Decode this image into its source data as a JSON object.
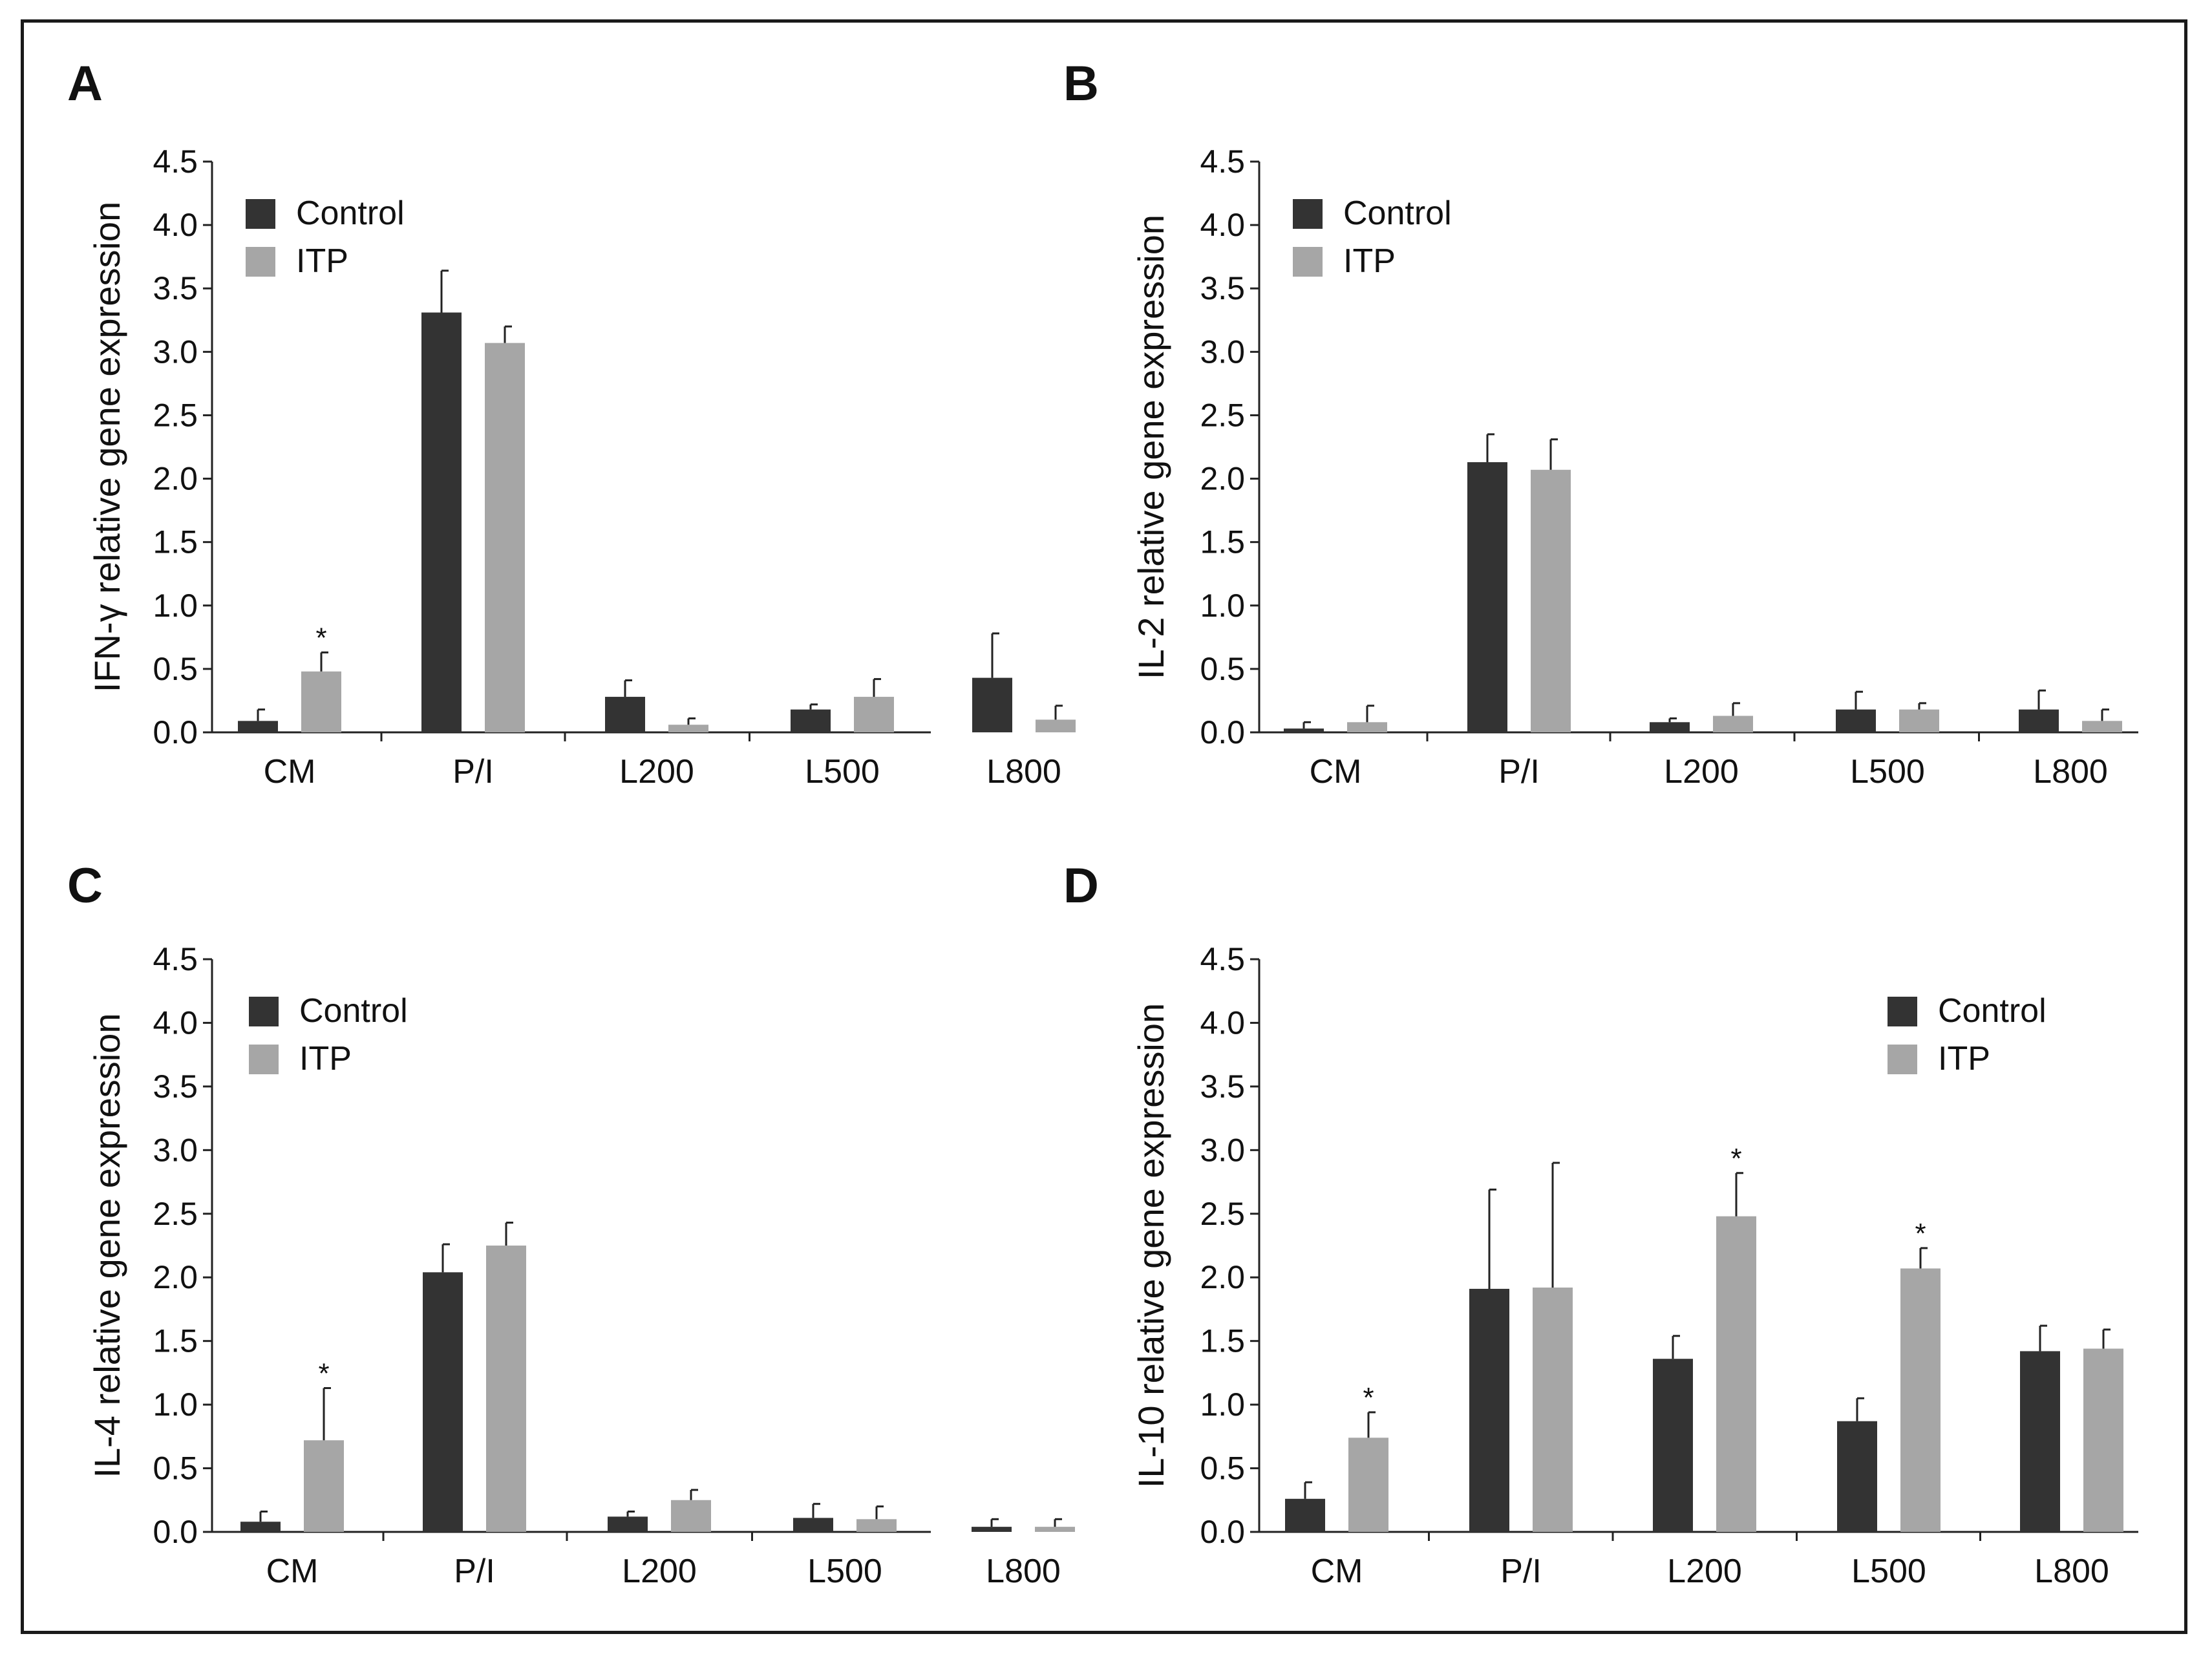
{
  "figure": {
    "legend": {
      "control": "Control",
      "itp": "ITP"
    },
    "colors": {
      "control": "#333333",
      "itp": "#a6a6a6",
      "axis": "#222222",
      "border": "#1a1a1a"
    }
  },
  "chart_data": [
    {
      "panel": "A",
      "type": "bar",
      "ylabel": "IFN-γ relative gene expression",
      "ylim": [
        0,
        4.5
      ],
      "yticks": [
        "0.0",
        "0.5",
        "1.0",
        "1.5",
        "2.0",
        "2.5",
        "3.0",
        "3.5",
        "4.0",
        "4.5"
      ],
      "categories": [
        "CM",
        "P/I",
        "L200",
        "L500",
        "L800"
      ],
      "legend_position": "top-left",
      "series": [
        {
          "name": "Control",
          "values": [
            0.09,
            3.31,
            0.28,
            0.18,
            0.43
          ],
          "errors": [
            0.09,
            0.33,
            0.13,
            0.04,
            0.35
          ]
        },
        {
          "name": "ITP",
          "values": [
            0.48,
            3.07,
            0.06,
            0.28,
            0.1
          ],
          "errors": [
            0.15,
            0.13,
            0.05,
            0.14,
            0.11
          ]
        }
      ],
      "significance": [
        {
          "category": "CM",
          "series": "ITP",
          "label": "*"
        }
      ]
    },
    {
      "panel": "B",
      "type": "bar",
      "ylabel": "IL-2 relative gene expression",
      "ylim": [
        0,
        4.5
      ],
      "yticks": [
        "0.0",
        "0.5",
        "1.0",
        "1.5",
        "2.0",
        "2.5",
        "3.0",
        "3.5",
        "4.0",
        "4.5"
      ],
      "categories": [
        "CM",
        "P/I",
        "L200",
        "L500",
        "L800"
      ],
      "legend_position": "top-left",
      "series": [
        {
          "name": "Control",
          "values": [
            0.03,
            2.13,
            0.08,
            0.18,
            0.18
          ],
          "errors": [
            0.05,
            0.22,
            0.03,
            0.14,
            0.15
          ]
        },
        {
          "name": "ITP",
          "values": [
            0.08,
            2.07,
            0.13,
            0.18,
            0.09
          ],
          "errors": [
            0.13,
            0.24,
            0.1,
            0.05,
            0.09
          ]
        }
      ],
      "significance": []
    },
    {
      "panel": "C",
      "type": "bar",
      "ylabel": "IL-4 relative gene expression",
      "ylim": [
        0,
        4.5
      ],
      "yticks": [
        "0.0",
        "0.5",
        "1.0",
        "1.5",
        "2.0",
        "2.5",
        "3.0",
        "3.5",
        "4.0",
        "4.5"
      ],
      "categories": [
        "CM",
        "P/I",
        "L200",
        "L500",
        "L800"
      ],
      "legend_position": "top-left",
      "series": [
        {
          "name": "Control",
          "values": [
            0.08,
            2.04,
            0.12,
            0.11,
            0.04
          ],
          "errors": [
            0.08,
            0.22,
            0.04,
            0.11,
            0.06
          ]
        },
        {
          "name": "ITP",
          "values": [
            0.72,
            2.25,
            0.25,
            0.1,
            0.04
          ],
          "errors": [
            0.41,
            0.18,
            0.08,
            0.1,
            0.06
          ]
        }
      ],
      "significance": [
        {
          "category": "CM",
          "series": "ITP",
          "label": "*"
        }
      ]
    },
    {
      "panel": "D",
      "type": "bar",
      "ylabel": "IL-10 relative gene expression",
      "ylim": [
        0,
        4.5
      ],
      "yticks": [
        "0.0",
        "0.5",
        "1.0",
        "1.5",
        "2.0",
        "2.5",
        "3.0",
        "3.5",
        "4.0",
        "4.5"
      ],
      "categories": [
        "CM",
        "P/I",
        "L200",
        "L500",
        "L800"
      ],
      "legend_position": "top-right",
      "series": [
        {
          "name": "Control",
          "values": [
            0.26,
            1.91,
            1.36,
            0.87,
            1.42
          ],
          "errors": [
            0.13,
            0.78,
            0.18,
            0.18,
            0.2
          ]
        },
        {
          "name": "ITP",
          "values": [
            0.74,
            1.92,
            2.48,
            2.07,
            1.44
          ],
          "errors": [
            0.2,
            0.98,
            0.34,
            0.16,
            0.15
          ]
        }
      ],
      "significance": [
        {
          "category": "CM",
          "series": "ITP",
          "label": "*"
        },
        {
          "category": "L200",
          "series": "ITP",
          "label": "*"
        },
        {
          "category": "L500",
          "series": "ITP",
          "label": "*"
        }
      ]
    }
  ]
}
